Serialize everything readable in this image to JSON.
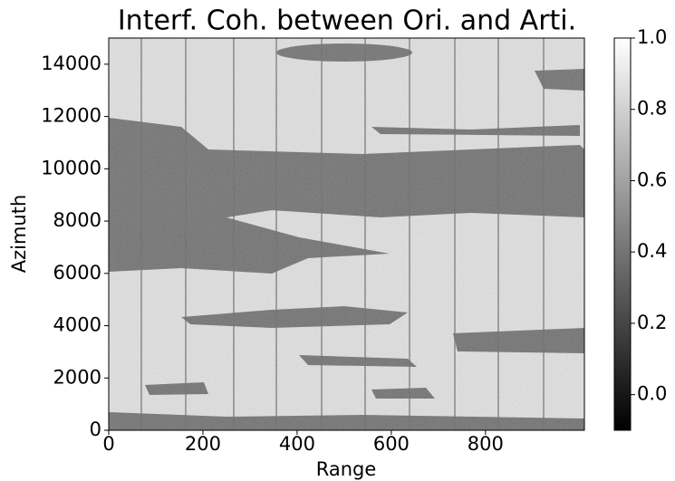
{
  "chart_data": {
    "type": "heatmap",
    "title": "Interf. Coh. between Ori. and Arti.",
    "xlabel": "Range",
    "ylabel": "Azimuth",
    "xlim": [
      0,
      1010
    ],
    "xticks": [
      0,
      200,
      400,
      600,
      800
    ],
    "ylim": [
      0,
      15000
    ],
    "yticks": [
      0,
      2000,
      4000,
      6000,
      8000,
      10000,
      12000,
      14000
    ],
    "colorbar": {
      "lim": [
        -0.1,
        1.0
      ],
      "ticks": [
        {
          "value": 0.0,
          "label": "0.0"
        },
        {
          "value": 0.2,
          "label": "0.2"
        },
        {
          "value": 0.4,
          "label": "0.4"
        },
        {
          "value": 0.6,
          "label": "0.6"
        },
        {
          "value": 0.8,
          "label": "0.8"
        },
        {
          "value": 1.0,
          "label": "1.0"
        }
      ],
      "cmap": "gray"
    }
  }
}
